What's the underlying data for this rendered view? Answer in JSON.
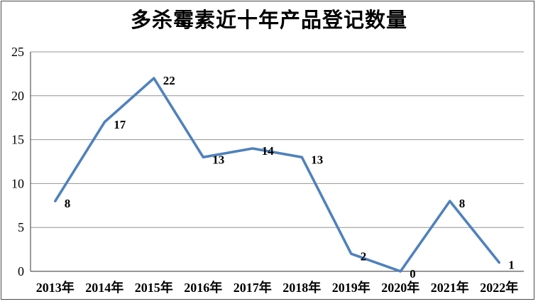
{
  "chart_data": {
    "type": "line",
    "title": "多杀霉素近十年产品登记数量",
    "categories": [
      "2013年",
      "2014年",
      "2015年",
      "2016年",
      "2017年",
      "2018年",
      "2019年",
      "2020年",
      "2021年",
      "2022年"
    ],
    "series": [
      {
        "values": [
          8,
          17,
          22,
          13,
          14,
          13,
          2,
          0,
          8,
          1
        ]
      }
    ],
    "data_labels": [
      8,
      17,
      22,
      13,
      14,
      13,
      2,
      0,
      8,
      1
    ],
    "xlabel": "",
    "ylabel": "",
    "ylim": [
      0,
      25
    ],
    "yticks": [
      0,
      5,
      10,
      15,
      20,
      25
    ],
    "grid": "horizontal",
    "legend": "none",
    "colors": {
      "line": "#4F81BD",
      "gridline": "#949494",
      "axis": "#595959",
      "text": "#000000",
      "frame_border": "#4a4a4a",
      "background": "#FFFFFF"
    }
  }
}
